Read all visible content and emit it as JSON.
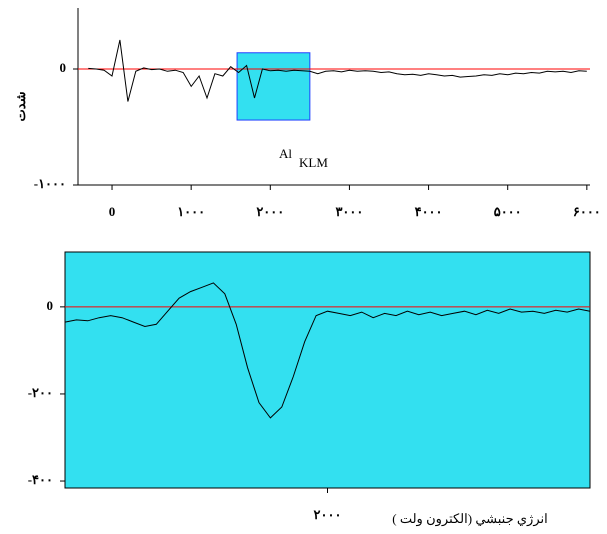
{
  "chart_data": [
    {
      "type": "line",
      "y_label": "شدت",
      "annotation": {
        "text": "Al",
        "subscript": "KLM"
      },
      "x": [
        -300,
        -200,
        -100,
        0,
        100,
        200,
        300,
        400,
        500,
        600,
        700,
        800,
        900,
        1000,
        1100,
        1200,
        1300,
        1400,
        1500,
        1600,
        1700,
        1800,
        1900,
        2000,
        2100,
        2200,
        2300,
        2400,
        2500,
        2600,
        2700,
        2800,
        2900,
        3000,
        3100,
        3200,
        3300,
        3400,
        3500,
        3600,
        3700,
        3800,
        3900,
        4000,
        4100,
        4200,
        4300,
        4400,
        4500,
        4600,
        4700,
        4800,
        4900,
        5000,
        5100,
        5200,
        5300,
        5400,
        5500,
        5600,
        5700,
        5800,
        5900,
        6000
      ],
      "series": [
        {
          "color": "#000000",
          "values": [
            5,
            0,
            -10,
            -60,
            250,
            -280,
            -20,
            10,
            -5,
            0,
            -20,
            -10,
            -30,
            -150,
            -60,
            -250,
            -40,
            -60,
            20,
            -30,
            30,
            -250,
            0,
            -15,
            -10,
            -20,
            -10,
            -15,
            -20,
            -40,
            -20,
            -15,
            -25,
            -10,
            -20,
            -15,
            -20,
            -30,
            -25,
            -40,
            -50,
            -45,
            -55,
            -40,
            -50,
            -60,
            -55,
            -70,
            -65,
            -60,
            -50,
            -55,
            -40,
            -50,
            -35,
            -40,
            -30,
            -35,
            -20,
            -25,
            -20,
            -30,
            -15,
            -20
          ]
        }
      ],
      "baseline": {
        "color": "#ff0000",
        "value": 0
      },
      "highlight": {
        "x": [
          1580,
          2500
        ],
        "y": [
          -440,
          140
        ],
        "color": "#33e0f0",
        "edge": "#1f3fff"
      },
      "xlim": [
        -430,
        6040
      ],
      "ylim": [
        -1000,
        526
      ],
      "xticks": [
        0,
        {
          "value": 1000,
          "label": "۱۰۰۰"
        },
        {
          "value": 2000,
          "label": "۲۰۰۰"
        },
        {
          "value": 3000,
          "label": "۳۰۰۰"
        },
        {
          "value": 4000,
          "label": "۴۰۰۰"
        },
        {
          "value": 5000,
          "label": "۵۰۰۰"
        },
        {
          "value": 6000,
          "label": "۶۰۰۰"
        }
      ],
      "yticks": [
        0,
        {
          "value": -1000,
          "label": "-۱۰۰۰"
        }
      ]
    },
    {
      "type": "line",
      "x_label": "انرژي جنبشي (الكترون ولت )",
      "background": "#33e0f0",
      "x": [
        1540,
        1560,
        1580,
        1600,
        1620,
        1640,
        1660,
        1680,
        1700,
        1720,
        1740,
        1760,
        1780,
        1800,
        1820,
        1840,
        1860,
        1880,
        1900,
        1920,
        1940,
        1960,
        1980,
        2000,
        2020,
        2040,
        2060,
        2080,
        2100,
        2120,
        2140,
        2160,
        2180,
        2200,
        2220,
        2240,
        2260,
        2280,
        2300,
        2320,
        2340,
        2360,
        2380,
        2400,
        2420,
        2440,
        2460
      ],
      "series": [
        {
          "color": "#000000",
          "values": [
            -35,
            -30,
            -32,
            -25,
            -20,
            -25,
            -35,
            -45,
            -40,
            -10,
            20,
            35,
            45,
            55,
            30,
            -40,
            -140,
            -220,
            -255,
            -230,
            -160,
            -80,
            -20,
            -10,
            -15,
            -20,
            -12,
            -25,
            -15,
            -20,
            -10,
            -18,
            -12,
            -20,
            -15,
            -10,
            -18,
            -8,
            -15,
            -5,
            -12,
            -10,
            -15,
            -8,
            -12,
            -5,
            -10
          ]
        }
      ],
      "baseline": {
        "color": "#ff0000",
        "value": 0
      },
      "xlim": [
        1540,
        2460
      ],
      "ylim": [
        -416,
        126
      ],
      "xticks": [
        {
          "value": 2000,
          "label": "۲۰۰۰"
        }
      ],
      "yticks": [
        0,
        {
          "value": -200,
          "label": "-۲۰۰"
        },
        {
          "value": -400,
          "label": "-۴۰۰"
        }
      ]
    }
  ]
}
